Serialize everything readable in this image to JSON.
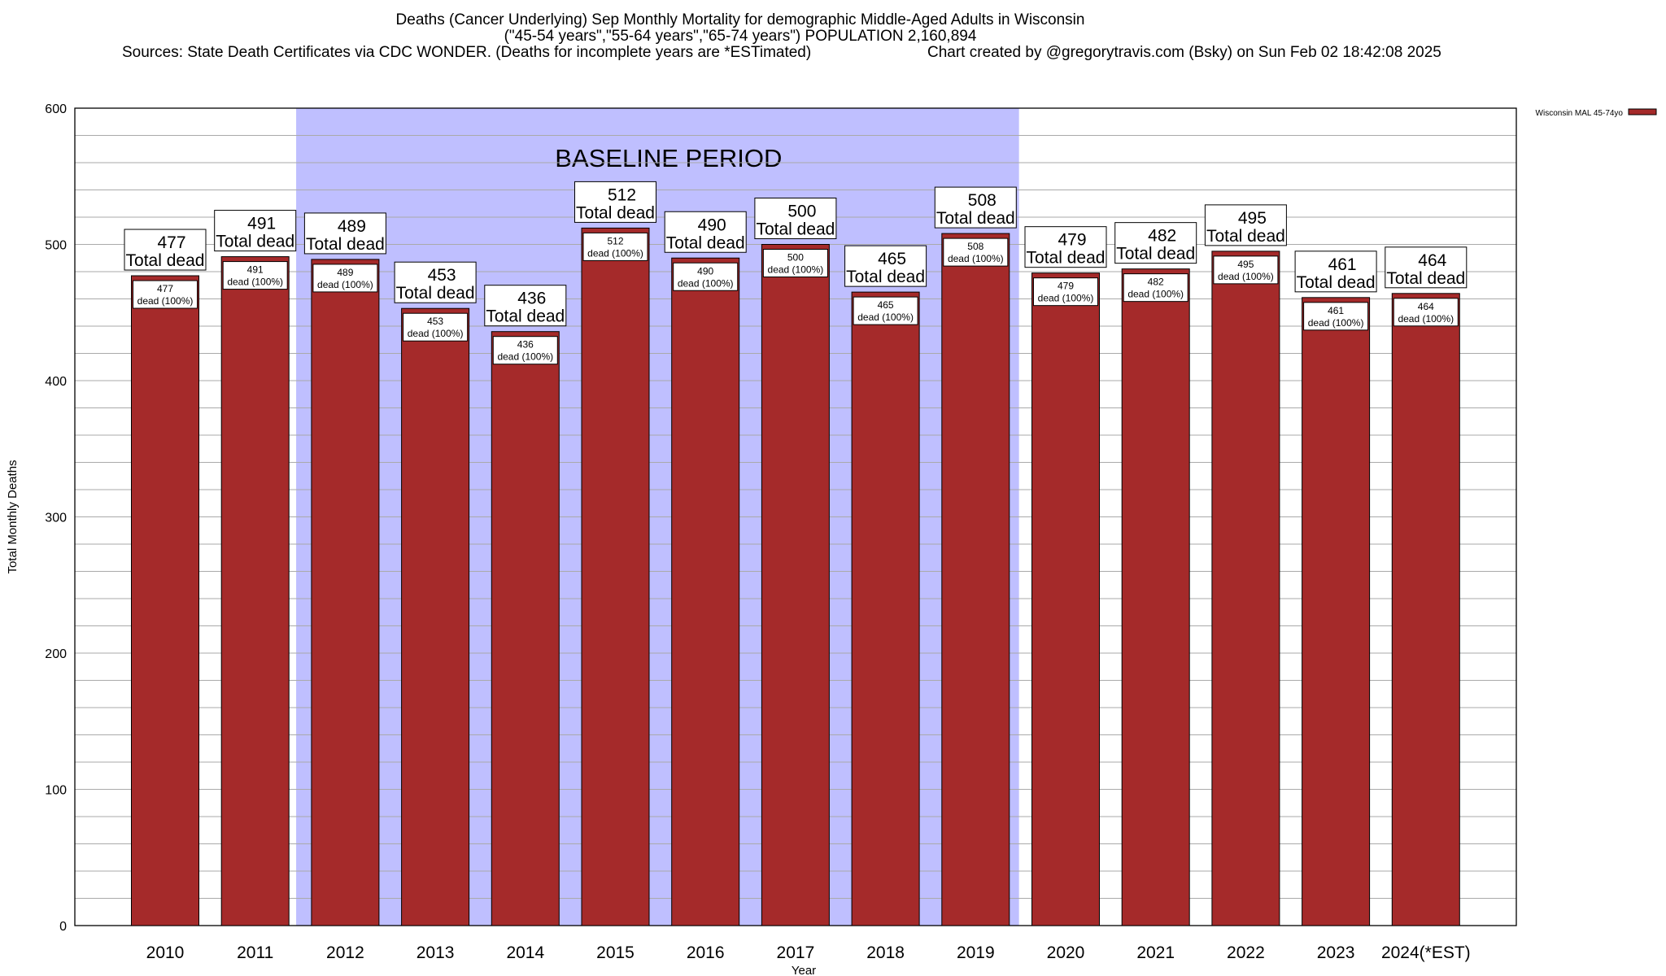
{
  "chart_data": {
    "type": "bar",
    "title": "Deaths (Cancer Underlying) Sep Monthly Mortality for demographic Middle-Aged Adults in Wisconsin",
    "subtitle": "(\"45-54 years\",\"55-64 years\",\"65-74 years\") POPULATION 2,160,894",
    "source": "Sources: State Death Certificates via CDC WONDER. (Deaths for incomplete years are *ESTimated)",
    "credit": "Chart created by @gregorytravis.com (Bsky) on Sun Feb 02 18:42:08 2025",
    "xlabel": "Year",
    "ylabel": "Total Monthly Deaths",
    "ylim": [
      0,
      600
    ],
    "yticks": [
      0,
      100,
      200,
      300,
      400,
      500,
      600
    ],
    "grid": true,
    "categories": [
      "2010",
      "2011",
      "2012",
      "2013",
      "2014",
      "2015",
      "2016",
      "2017",
      "2018",
      "2019",
      "2020",
      "2021",
      "2022",
      "2023",
      "2024(*EST)"
    ],
    "series": [
      {
        "name": "Wisconsin MAL 45-74yo",
        "values": [
          477,
          491,
          489,
          453,
          436,
          512,
          490,
          500,
          465,
          508,
          479,
          482,
          495,
          461,
          464
        ],
        "color": "#a52a2a"
      }
    ],
    "top_label_suffix": "Total dead",
    "inner_label_suffix": "dead (100%)",
    "annotation": {
      "text": "BASELINE PERIOD",
      "from": "2012",
      "to": "2019",
      "color": "#bfbfff"
    },
    "legend_position": "top-right-outside"
  }
}
